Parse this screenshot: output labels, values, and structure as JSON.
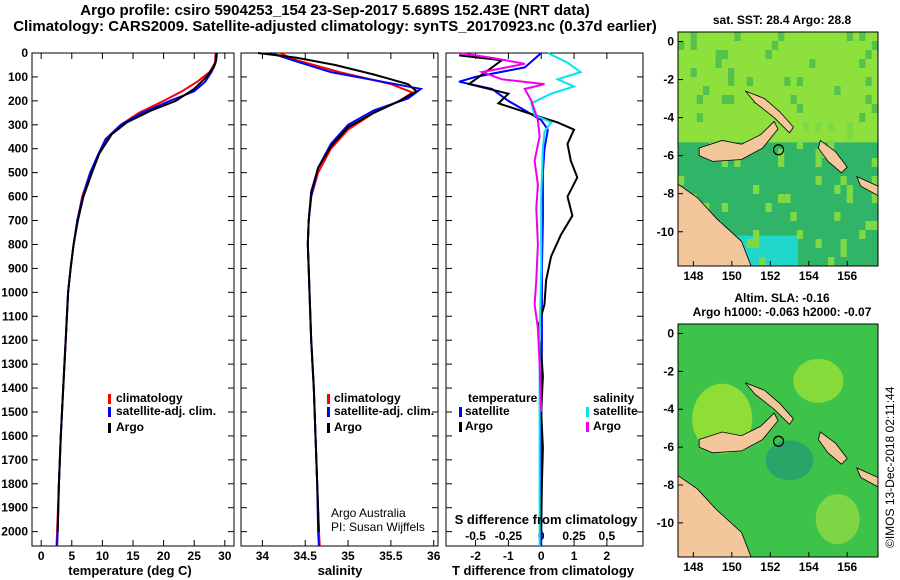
{
  "header": {
    "line1": "Argo profile: csiro 5904253_154 23-Sep-2017 5.689S 152.43E (NRT data)",
    "line2": "Climatology: CARS2009. Satellite-adjusted climatology: synTS_20170923.nc (0.37d earlier)"
  },
  "colors": {
    "climatology": "#ff0000",
    "satellite": "#0000ff",
    "argo": "#000000",
    "sat_salinity": "#00e5ee",
    "argo_salinity": "#ee00ee"
  },
  "depth_axis": {
    "ticks": [
      0,
      100,
      200,
      300,
      400,
      500,
      600,
      700,
      800,
      900,
      1000,
      1100,
      1200,
      1300,
      1400,
      1500,
      1600,
      1700,
      1800,
      1900,
      2000
    ],
    "range": [
      0,
      2060
    ]
  },
  "chart_data": [
    {
      "type": "line",
      "id": "temperature",
      "xlabel": "temperature (deg C)",
      "ylabel": "",
      "xlim": [
        -1.5,
        31.5
      ],
      "ylim": [
        2060,
        0
      ],
      "xticks": [
        0,
        5,
        10,
        15,
        20,
        25,
        30
      ],
      "legend": [
        "climatology",
        "satellite-adj. clim.",
        "Argo"
      ],
      "series": [
        {
          "name": "climatology",
          "color": "#ff0000",
          "points": [
            [
              28.5,
              0
            ],
            [
              28.4,
              40
            ],
            [
              27.5,
              80
            ],
            [
              25.5,
              120
            ],
            [
              23,
              160
            ],
            [
              20,
              200
            ],
            [
              16,
              250
            ],
            [
              13,
              300
            ],
            [
              11,
              350
            ],
            [
              9.5,
              420
            ],
            [
              8,
              500
            ],
            [
              6.7,
              600
            ],
            [
              5.9,
              700
            ],
            [
              5.3,
              800
            ],
            [
              4.8,
              900
            ],
            [
              4.4,
              1000
            ],
            [
              4.0,
              1200
            ],
            [
              3.6,
              1400
            ],
            [
              3.2,
              1600
            ],
            [
              2.9,
              1800
            ],
            [
              2.6,
              2000
            ],
            [
              2.5,
              2060
            ]
          ]
        },
        {
          "name": "satellite-adj. clim.",
          "color": "#0000ff",
          "points": [
            [
              28.6,
              0
            ],
            [
              28.5,
              40
            ],
            [
              27.8,
              80
            ],
            [
              26.8,
              120
            ],
            [
              25,
              160
            ],
            [
              21,
              200
            ],
            [
              16.5,
              250
            ],
            [
              13,
              300
            ],
            [
              10.5,
              360
            ],
            [
              9.2,
              430
            ],
            [
              8,
              500
            ],
            [
              6.8,
              600
            ],
            [
              5.9,
              700
            ],
            [
              5.3,
              800
            ],
            [
              4.8,
              900
            ],
            [
              4.4,
              1000
            ],
            [
              4.0,
              1200
            ],
            [
              3.6,
              1400
            ],
            [
              3.2,
              1600
            ],
            [
              2.9,
              1800
            ],
            [
              2.7,
              2000
            ],
            [
              2.6,
              2060
            ]
          ]
        },
        {
          "name": "Argo",
          "color": "#000000",
          "points": [
            [
              28.7,
              0
            ],
            [
              28.6,
              30
            ],
            [
              28.2,
              60
            ],
            [
              27,
              100
            ],
            [
              25,
              150
            ],
            [
              22,
              200
            ],
            [
              18,
              240
            ],
            [
              14,
              290
            ],
            [
              11.5,
              340
            ],
            [
              9.5,
              420
            ],
            [
              8.3,
              500
            ],
            [
              6.9,
              600
            ],
            [
              6,
              700
            ],
            [
              5.3,
              800
            ],
            [
              4.8,
              900
            ],
            [
              4.4,
              1000
            ],
            [
              4.0,
              1200
            ],
            [
              3.6,
              1400
            ],
            [
              3.2,
              1600
            ],
            [
              2.9,
              1800
            ],
            [
              2.7,
              2000
            ]
          ]
        }
      ]
    },
    {
      "type": "line",
      "id": "salinity",
      "xlabel": "salinity",
      "ylabel": "",
      "xlim": [
        33.75,
        36.05
      ],
      "ylim": [
        2060,
        0
      ],
      "xticks": [
        34,
        34.5,
        35,
        35.5,
        36
      ],
      "legend": [
        "climatology",
        "satellite-adj. clim.",
        "Argo"
      ],
      "annotation": [
        "Argo Australia",
        "PI: Susan Wijffels"
      ],
      "series": [
        {
          "name": "climatology",
          "color": "#ff0000",
          "points": [
            [
              34.2,
              0
            ],
            [
              34.4,
              30
            ],
            [
              34.9,
              80
            ],
            [
              35.5,
              130
            ],
            [
              35.75,
              165
            ],
            [
              35.6,
              200
            ],
            [
              35.3,
              250
            ],
            [
              35.0,
              320
            ],
            [
              34.8,
              400
            ],
            [
              34.65,
              500
            ],
            [
              34.57,
              600
            ],
            [
              34.54,
              700
            ],
            [
              34.53,
              800
            ],
            [
              34.54,
              900
            ],
            [
              34.55,
              1000
            ],
            [
              34.57,
              1200
            ],
            [
              34.6,
              1400
            ],
            [
              34.62,
              1600
            ],
            [
              34.64,
              1800
            ],
            [
              34.66,
              2000
            ],
            [
              34.67,
              2060
            ]
          ]
        },
        {
          "name": "satellite-adj. clim.",
          "color": "#0000ff",
          "points": [
            [
              34.1,
              0
            ],
            [
              34.35,
              30
            ],
            [
              34.8,
              80
            ],
            [
              35.4,
              120
            ],
            [
              35.85,
              150
            ],
            [
              35.7,
              190
            ],
            [
              35.3,
              240
            ],
            [
              35.0,
              300
            ],
            [
              34.8,
              380
            ],
            [
              34.65,
              480
            ],
            [
              34.57,
              600
            ],
            [
              34.54,
              700
            ],
            [
              34.53,
              800
            ],
            [
              34.54,
              900
            ],
            [
              34.55,
              1000
            ],
            [
              34.57,
              1200
            ],
            [
              34.6,
              1400
            ],
            [
              34.62,
              1600
            ],
            [
              34.64,
              1800
            ],
            [
              34.65,
              2000
            ],
            [
              34.66,
              2060
            ]
          ]
        },
        {
          "name": "Argo",
          "color": "#000000",
          "points": [
            [
              33.95,
              0
            ],
            [
              34.4,
              20
            ],
            [
              34.85,
              50
            ],
            [
              35.3,
              90
            ],
            [
              35.7,
              130
            ],
            [
              35.8,
              160
            ],
            [
              35.6,
              200
            ],
            [
              35.3,
              250
            ],
            [
              35.0,
              310
            ],
            [
              34.8,
              390
            ],
            [
              34.65,
              480
            ],
            [
              34.57,
              580
            ],
            [
              34.54,
              700
            ],
            [
              34.53,
              800
            ],
            [
              34.54,
              900
            ],
            [
              34.55,
              1000
            ],
            [
              34.57,
              1200
            ],
            [
              34.6,
              1400
            ],
            [
              34.62,
              1600
            ],
            [
              34.64,
              1800
            ],
            [
              34.66,
              2000
            ]
          ]
        }
      ]
    },
    {
      "type": "line",
      "id": "differences",
      "xlabel": "T difference from climatology",
      "ylabel": "",
      "xlim": [
        -2.9,
        3.1
      ],
      "ylim": [
        2060,
        0
      ],
      "xticks": [
        -2,
        -1,
        0,
        1,
        2
      ],
      "top_axis_label": "S difference from climatology",
      "top_ticks": [
        "-0.5",
        "-0.25",
        "0",
        "0.25",
        "0.5"
      ],
      "top_tick_values": [
        -2,
        -1,
        0,
        1,
        2
      ],
      "legend_temperature": {
        "title": "temperature",
        "items": [
          "satellite",
          "Argo"
        ]
      },
      "legend_salinity": {
        "title": "salinity",
        "items": [
          "satellite",
          "Argo"
        ]
      },
      "series": [
        {
          "name": "temperature satellite",
          "color": "#0000ff",
          "points": [
            [
              0,
              0
            ],
            [
              -0.5,
              60
            ],
            [
              -2,
              100
            ],
            [
              -2.5,
              120
            ],
            [
              -1.5,
              150
            ],
            [
              -1,
              200
            ],
            [
              -0.5,
              240
            ],
            [
              0,
              280
            ],
            [
              0.2,
              320
            ],
            [
              0.1,
              400
            ],
            [
              0.05,
              500
            ],
            [
              0.05,
              700
            ],
            [
              0.02,
              900
            ],
            [
              0.02,
              1200
            ],
            [
              0.01,
              1500
            ],
            [
              0.01,
              1800
            ],
            [
              0,
              2060
            ]
          ]
        },
        {
          "name": "temperature Argo",
          "color": "#000000",
          "points": [
            [
              -2.5,
              10
            ],
            [
              -1.2,
              30
            ],
            [
              -1.5,
              60
            ],
            [
              -2.2,
              130
            ],
            [
              -1.0,
              170
            ],
            [
              -1.3,
              210
            ],
            [
              -0.2,
              260
            ],
            [
              0.5,
              290
            ],
            [
              1.0,
              320
            ],
            [
              0.8,
              380
            ],
            [
              0.9,
              450
            ],
            [
              1.1,
              520
            ],
            [
              0.8,
              600
            ],
            [
              0.95,
              680
            ],
            [
              0.6,
              760
            ],
            [
              0.3,
              850
            ],
            [
              0.15,
              950
            ],
            [
              0.1,
              1050
            ],
            [
              -0.1,
              1150
            ],
            [
              0.0,
              1250
            ],
            [
              0.05,
              1350
            ],
            [
              0.0,
              1500
            ],
            [
              0.05,
              1650
            ],
            [
              0.02,
              1800
            ],
            [
              0,
              2000
            ]
          ]
        },
        {
          "name": "salinity satellite",
          "color": "#00e5ee",
          "points": [
            [
              0.2,
              0
            ],
            [
              0.8,
              40
            ],
            [
              1.2,
              80
            ],
            [
              0.5,
              110
            ],
            [
              1.0,
              140
            ],
            [
              0.3,
              170
            ],
            [
              -0.3,
              210
            ],
            [
              -0.2,
              260
            ],
            [
              0.3,
              290
            ],
            [
              0.1,
              330
            ],
            [
              0.05,
              400
            ],
            [
              0,
              600
            ],
            [
              0,
              900
            ],
            [
              -0.05,
              1200
            ],
            [
              -0.05,
              1500
            ],
            [
              -0.05,
              1800
            ],
            [
              -0.05,
              2060
            ]
          ]
        },
        {
          "name": "salinity Argo",
          "color": "#ee00ee",
          "points": [
            [
              -2.5,
              0
            ],
            [
              -1.5,
              20
            ],
            [
              -0.5,
              45
            ],
            [
              -1.8,
              80
            ],
            [
              -1.2,
              110
            ],
            [
              0.1,
              130
            ],
            [
              -0.5,
              150
            ],
            [
              -0.3,
              200
            ],
            [
              -0.1,
              280
            ],
            [
              -0.05,
              350
            ],
            [
              -0.2,
              450
            ],
            [
              -0.1,
              550
            ],
            [
              -0.15,
              650
            ],
            [
              -0.1,
              800
            ],
            [
              -0.15,
              950
            ],
            [
              -0.2,
              1050
            ],
            [
              -0.1,
              1150
            ],
            [
              -0.05,
              1300
            ],
            [
              0.0,
              1500
            ]
          ]
        }
      ]
    },
    {
      "type": "heatmap",
      "id": "sst-map",
      "title": "sat. SST: 28.4 Argo: 28.8",
      "xticks": [
        148,
        150,
        152,
        154,
        156
      ],
      "yticks": [
        0,
        -2,
        -4,
        -6,
        -8,
        -10
      ],
      "xlim": [
        147.2,
        157.6
      ],
      "ylim": [
        0.5,
        -11.8
      ],
      "argo_position": [
        152.43,
        -5.689
      ]
    },
    {
      "type": "heatmap",
      "id": "sla-map",
      "title1": "Altim. SLA: -0.16",
      "title2": "Argo h1000: -0.063 h2000: -0.07",
      "xticks": [
        148,
        150,
        152,
        154,
        156
      ],
      "yticks": [
        0,
        -2,
        -4,
        -6,
        -8,
        -10
      ],
      "xlim": [
        147.2,
        157.6
      ],
      "ylim": [
        0.5,
        -11.8
      ],
      "argo_position": [
        152.43,
        -5.689
      ]
    }
  ],
  "footer": "©IMOS 13-Dec-2018 02:11:44"
}
